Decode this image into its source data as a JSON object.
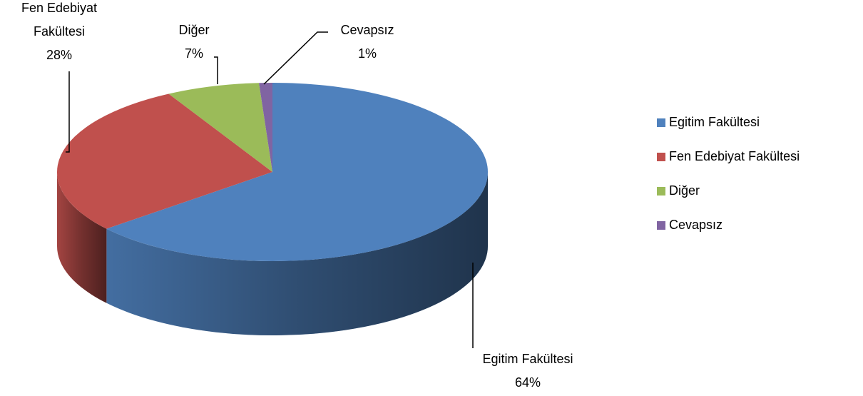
{
  "chart_data": {
    "type": "pie3d",
    "categories": [
      "Egitim Fakültesi",
      "Fen Edebiyat Fakültesi",
      "Diğer",
      "Cevapsız"
    ],
    "values": [
      64,
      28,
      7,
      1
    ],
    "value_labels": [
      "64%",
      "28%",
      "7%",
      "1%"
    ],
    "colors": [
      "#4f81bd",
      "#c0504d",
      "#9bbb59",
      "#8064a2"
    ],
    "legend": "right"
  }
}
